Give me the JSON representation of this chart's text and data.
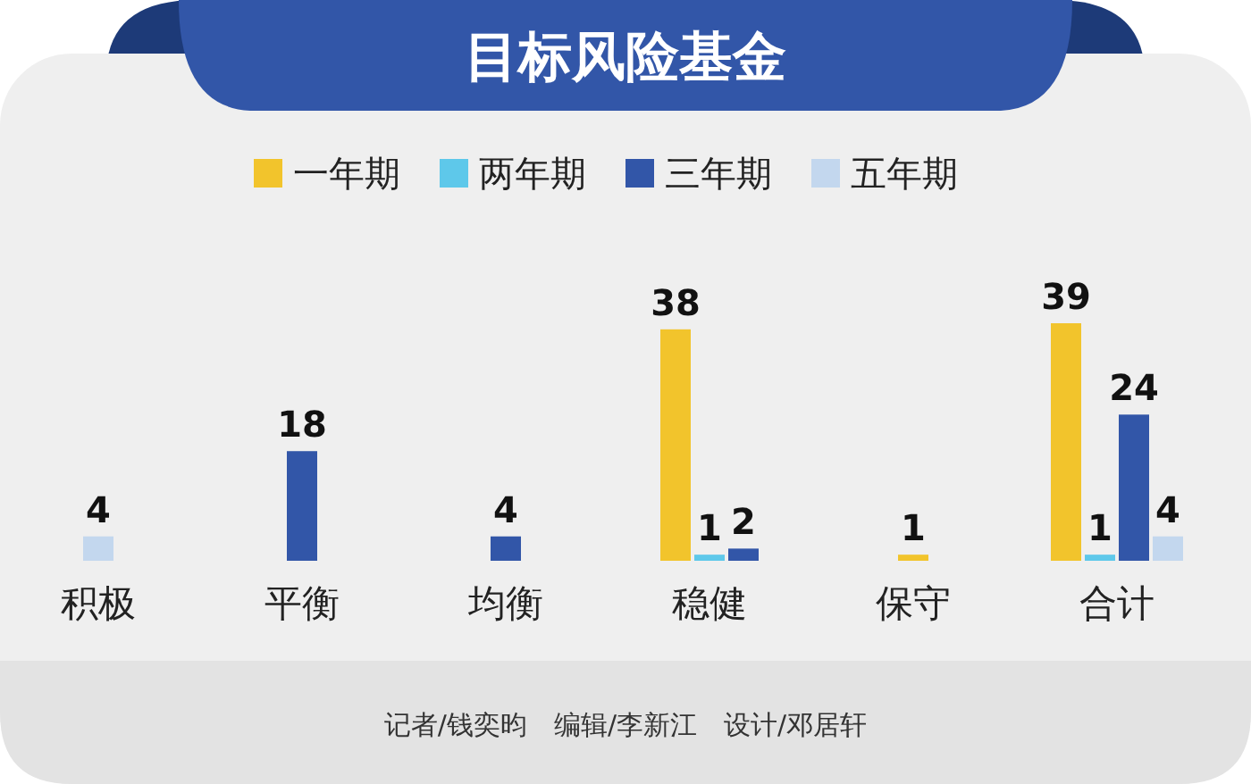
{
  "chart_data": {
    "type": "bar",
    "title": "目标风险基金",
    "categories": [
      "积极",
      "平衡",
      "均衡",
      "稳健",
      "保守",
      "合计"
    ],
    "series": [
      {
        "name": "一年期",
        "color": "#f2c42c",
        "values": [
          null,
          null,
          null,
          38,
          1,
          39
        ]
      },
      {
        "name": "两年期",
        "color": "#5ec8ea",
        "values": [
          null,
          null,
          null,
          1,
          null,
          1
        ]
      },
      {
        "name": "三年期",
        "color": "#3256a8",
        "values": [
          null,
          18,
          4,
          2,
          null,
          24
        ]
      },
      {
        "name": "五年期",
        "color": "#c3d7ee",
        "values": [
          4,
          null,
          null,
          null,
          null,
          4
        ]
      }
    ],
    "data_labels": true,
    "legend": "top",
    "annotations": [
      "记者/钱奕昀　编辑/李新江　设计/邓居轩"
    ]
  }
}
